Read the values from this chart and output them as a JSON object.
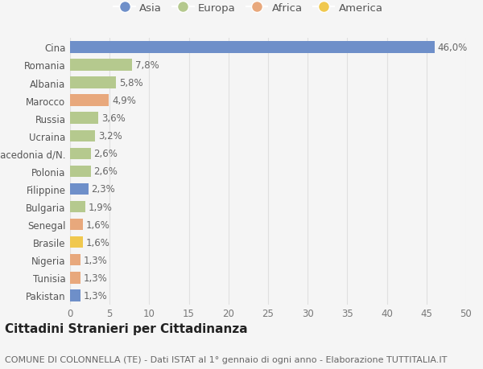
{
  "categories": [
    "Pakistan",
    "Tunisia",
    "Nigeria",
    "Brasile",
    "Senegal",
    "Bulgaria",
    "Filippine",
    "Polonia",
    "Macedonia d/N.",
    "Ucraina",
    "Russia",
    "Marocco",
    "Albania",
    "Romania",
    "Cina"
  ],
  "values": [
    1.3,
    1.3,
    1.3,
    1.6,
    1.6,
    1.9,
    2.3,
    2.6,
    2.6,
    3.2,
    3.6,
    4.9,
    5.8,
    7.8,
    46.0
  ],
  "colors": [
    "#6e8fc9",
    "#e8a87c",
    "#e8a87c",
    "#f0c84e",
    "#e8a87c",
    "#b5c98e",
    "#6e8fc9",
    "#b5c98e",
    "#b5c98e",
    "#b5c98e",
    "#b5c98e",
    "#e8a87c",
    "#b5c98e",
    "#b5c98e",
    "#6e8fc9"
  ],
  "legend_labels": [
    "Asia",
    "Europa",
    "Africa",
    "America"
  ],
  "legend_colors": [
    "#6e8fc9",
    "#b5c98e",
    "#e8a87c",
    "#f0c84e"
  ],
  "title": "Cittadini Stranieri per Cittadinanza",
  "subtitle": "COMUNE DI COLONNELLA (TE) - Dati ISTAT al 1° gennaio di ogni anno - Elaborazione TUTTITALIA.IT",
  "xlim": [
    0,
    50
  ],
  "xticks": [
    0,
    5,
    10,
    15,
    20,
    25,
    30,
    35,
    40,
    45,
    50
  ],
  "background_color": "#f5f5f5",
  "grid_color": "#e0e0e0",
  "bar_height": 0.65,
  "title_fontsize": 11,
  "subtitle_fontsize": 8,
  "tick_fontsize": 8.5,
  "value_fontsize": 8.5,
  "legend_fontsize": 9.5
}
